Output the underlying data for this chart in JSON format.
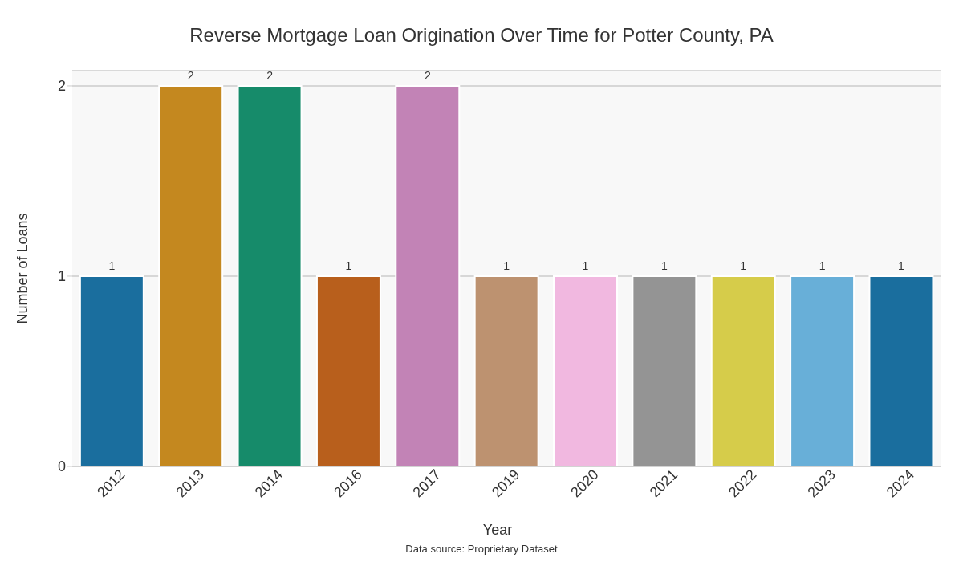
{
  "chart_data": {
    "type": "bar",
    "title": "Reverse Mortgage Loan Origination Over Time for Potter County, PA",
    "xlabel": "Year",
    "ylabel": "Number of Loans",
    "categories": [
      "2012",
      "2013",
      "2014",
      "2016",
      "2017",
      "2019",
      "2020",
      "2021",
      "2022",
      "2023",
      "2024"
    ],
    "values": [
      1,
      2,
      2,
      1,
      2,
      1,
      1,
      1,
      1,
      1,
      1
    ],
    "colors": [
      "#1a6e9e",
      "#c4881f",
      "#168b6a",
      "#b85f1c",
      "#c283b6",
      "#bd9270",
      "#f1b8e0",
      "#949494",
      "#d6cc4a",
      "#68afd8",
      "#1a6e9e"
    ],
    "ylim": [
      0,
      2.08
    ],
    "yticks": [
      0,
      1,
      2
    ],
    "grid": "y",
    "data_labels": true,
    "annotations": [
      "Data source: Proprietary Dataset"
    ]
  }
}
